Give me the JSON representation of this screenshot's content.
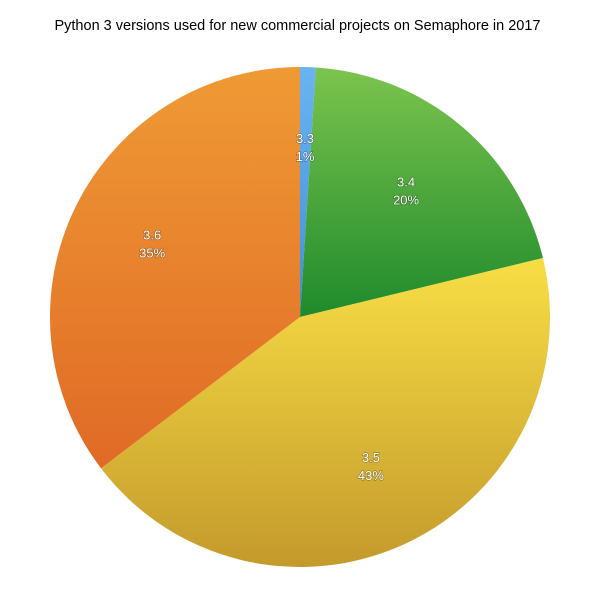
{
  "chart_data": {
    "type": "pie",
    "title": "Python 3 versions used for new commercial projects on Semaphore in 2017",
    "slices": [
      {
        "label": "3.3",
        "value": 1,
        "value_label": "1%",
        "color_light": "#6ab4f0",
        "color_dark": "#3f8fd9"
      },
      {
        "label": "3.4",
        "value": 20,
        "value_label": "20%",
        "color_light": "#7cc44e",
        "color_dark": "#1f8a2c"
      },
      {
        "label": "3.5",
        "value": 43,
        "value_label": "43%",
        "color_light": "#f8de45",
        "color_dark": "#c49a2c"
      },
      {
        "label": "3.6",
        "value": 35,
        "value_label": "35%",
        "color_light": "#ef9a35",
        "color_dark": "#e06a26"
      }
    ],
    "start_angle": "12 o'clock",
    "direction": "clockwise",
    "legend": "none"
  }
}
